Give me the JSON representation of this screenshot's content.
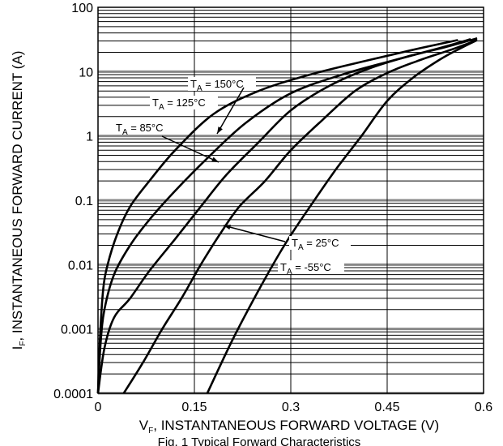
{
  "chart_data": {
    "type": "line",
    "y_scale": "log",
    "xlabel": {
      "symbol": "V",
      "sub": "F",
      "text": ", INSTANTANEOUS FORWARD VOLTAGE (V)"
    },
    "ylabel": {
      "symbol": "I",
      "sub": "F",
      "text": ", INSTANTANEOUS FORWARD CURRENT (A)"
    },
    "xlim": [
      0,
      0.6
    ],
    "ylim": [
      0.0001,
      100
    ],
    "x_ticks": [
      0,
      0.15,
      0.3,
      0.45,
      0.6
    ],
    "x_tick_labels": [
      "0",
      "0.15",
      "0.3",
      "0.45",
      "0.6"
    ],
    "y_ticks": [
      0.0001,
      0.001,
      0.01,
      0.1,
      1,
      10,
      100
    ],
    "y_tick_labels": [
      "0.0001",
      "0.001",
      "0.01",
      "0.1",
      "1",
      "10",
      "100"
    ],
    "grid": true,
    "caption": "Fig. 1 Typical Forward Characteristics",
    "series": [
      {
        "name": "T_A = 150°C",
        "label_prefix": "T",
        "label_sub": "A",
        "label_suffix": " = 150°C",
        "x": [
          0.0,
          0.003,
          0.008,
          0.015,
          0.03,
          0.05,
          0.08,
          0.12,
          0.18,
          0.25,
          0.33,
          0.42,
          0.5,
          0.56
        ],
        "y": [
          0.0001,
          0.0007,
          0.004,
          0.01,
          0.03,
          0.08,
          0.2,
          0.6,
          2.2,
          5,
          9,
          15,
          23,
          31
        ]
      },
      {
        "name": "T_A = 125°C",
        "label_prefix": "T",
        "label_sub": "A",
        "label_suffix": " = 125°C",
        "x": [
          0.0,
          0.004,
          0.01,
          0.025,
          0.05,
          0.08,
          0.12,
          0.17,
          0.23,
          0.3,
          0.38,
          0.46,
          0.53,
          0.58
        ],
        "y": [
          0.0001,
          0.0006,
          0.002,
          0.007,
          0.02,
          0.05,
          0.14,
          0.45,
          1.6,
          4.6,
          9,
          15,
          23,
          32
        ]
      },
      {
        "name": "T_A = 85°C",
        "label_prefix": "T",
        "label_sub": "A",
        "label_suffix": " = 85°C",
        "x": [
          0.0,
          0.01,
          0.025,
          0.05,
          0.08,
          0.12,
          0.16,
          0.2,
          0.25,
          0.3,
          0.36,
          0.42,
          0.48,
          0.54,
          0.59
        ],
        "y": [
          0.0001,
          0.0005,
          0.0015,
          0.003,
          0.008,
          0.025,
          0.08,
          0.25,
          0.8,
          2.5,
          6,
          11,
          17,
          24,
          33
        ]
      },
      {
        "name": "T_A = 25°C",
        "label_prefix": "T",
        "label_sub": "A",
        "label_suffix": " = 25°C",
        "x": [
          0.04,
          0.07,
          0.1,
          0.13,
          0.16,
          0.19,
          0.22,
          0.26,
          0.3,
          0.35,
          0.4,
          0.45,
          0.5,
          0.55,
          0.59
        ],
        "y": [
          0.0001,
          0.0003,
          0.001,
          0.003,
          0.01,
          0.03,
          0.08,
          0.2,
          0.6,
          1.8,
          5,
          9.5,
          15,
          22,
          31
        ]
      },
      {
        "name": "T_A = -55°C",
        "label_prefix": "T",
        "label_sub": "A",
        "label_suffix": " = -55°C",
        "x": [
          0.17,
          0.21,
          0.25,
          0.29,
          0.33,
          0.37,
          0.41,
          0.45,
          0.49,
          0.53,
          0.56,
          0.59
        ],
        "y": [
          0.0001,
          0.0007,
          0.004,
          0.02,
          0.08,
          0.3,
          1,
          3.5,
          8,
          15,
          22,
          31
        ]
      }
    ]
  }
}
